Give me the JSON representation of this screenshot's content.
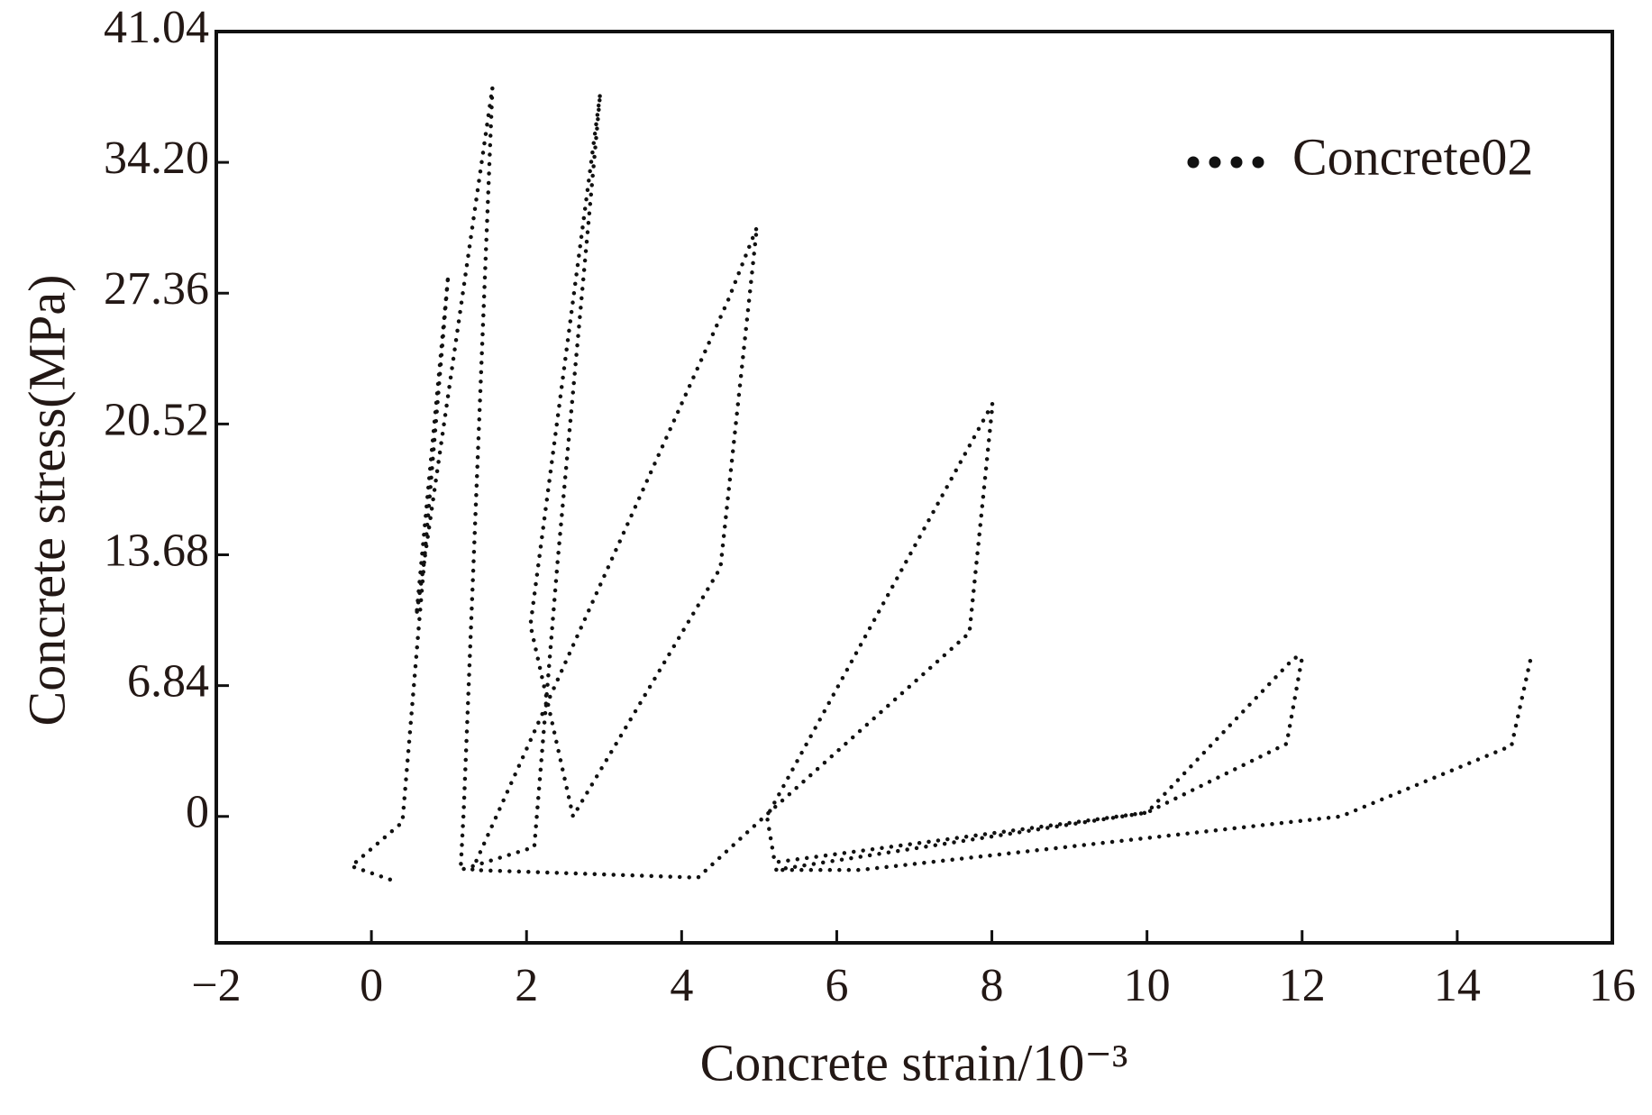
{
  "chart_data": {
    "type": "line",
    "xlabel": "Concrete strain/10⁻³",
    "ylabel": "Concrete stress(MPa)",
    "x": [
      0.24,
      -0.26,
      0.4,
      0.99,
      0.58,
      1.56,
      1.19,
      1.15,
      2.1,
      2.4,
      2.95,
      2.05,
      2.6,
      4.5,
      4.97,
      4.6,
      1.3,
      4.21,
      5.07,
      7.71,
      8.01,
      5.1,
      5.2,
      10.0,
      11.9,
      12.0,
      11.8,
      10.0,
      5.2,
      6.3,
      12.5,
      14.7,
      14.95
    ],
    "series": [
      {
        "name": "Concrete02",
        "color": "#111111",
        "values": [
          -3.3,
          -2.6,
          -0.3,
          28.3,
          10.5,
          38.1,
          0.3,
          -2.8,
          -1.6,
          13.3,
          37.8,
          10,
          0,
          13,
          30.8,
          27,
          -2.8,
          -3.2,
          0,
          9.6,
          21.6,
          0,
          -2.4,
          0.2,
          8.3,
          8.3,
          3.8,
          0.2,
          -2.8,
          -2.8,
          0,
          3.7,
          8.3
        ]
      }
    ],
    "xlim": [
      -2,
      16
    ],
    "xticks": [
      {
        "value": -2,
        "label": "−2"
      },
      0,
      2,
      4,
      6,
      8,
      10,
      12,
      14,
      16
    ],
    "ylim": [
      -6.61,
      41.04
    ],
    "yticks": [
      0,
      6.84,
      13.68,
      20.52,
      27.36,
      {
        "value": 34.2,
        "label": "34.20"
      },
      41.04
    ],
    "legend": "upper right"
  }
}
